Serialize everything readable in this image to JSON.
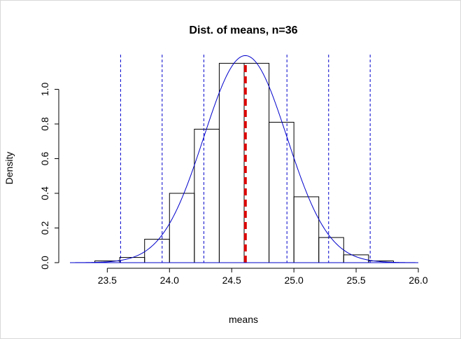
{
  "chart_data": {
    "type": "histogram",
    "title": "Dist. of means, n=36",
    "xlabel": "means",
    "ylabel": "Density",
    "xlim": [
      23.2,
      26.0
    ],
    "ylim": [
      0,
      1.2
    ],
    "x_ticks": [
      "23.5",
      "24.0",
      "24.5",
      "25.0",
      "25.5",
      "26.0"
    ],
    "y_ticks": [
      "0.0",
      "0.2",
      "0.4",
      "0.6",
      "0.8",
      "1.0"
    ],
    "bins": [
      {
        "x0": 23.4,
        "x1": 23.6,
        "density": 0.01
      },
      {
        "x0": 23.6,
        "x1": 23.8,
        "density": 0.03
      },
      {
        "x0": 23.8,
        "x1": 24.0,
        "density": 0.135
      },
      {
        "x0": 24.0,
        "x1": 24.2,
        "density": 0.4
      },
      {
        "x0": 24.2,
        "x1": 24.4,
        "density": 0.77
      },
      {
        "x0": 24.4,
        "x1": 24.6,
        "density": 1.15
      },
      {
        "x0": 24.6,
        "x1": 24.8,
        "density": 1.15
      },
      {
        "x0": 24.8,
        "x1": 25.0,
        "density": 0.81
      },
      {
        "x0": 25.0,
        "x1": 25.2,
        "density": 0.38
      },
      {
        "x0": 25.2,
        "x1": 25.4,
        "density": 0.145
      },
      {
        "x0": 25.4,
        "x1": 25.6,
        "density": 0.045
      },
      {
        "x0": 25.6,
        "x1": 25.8,
        "density": 0.01
      }
    ],
    "normal_curve": {
      "mean": 24.61,
      "sd": 0.334,
      "color": "#0000cc"
    },
    "mean_line": {
      "x": 24.61,
      "color": "#dd0000"
    },
    "sd_lines": {
      "x": [
        23.607,
        23.941,
        24.276,
        24.944,
        25.279,
        25.613
      ],
      "color": "#0000cc"
    },
    "grid": false,
    "legend": "none"
  }
}
